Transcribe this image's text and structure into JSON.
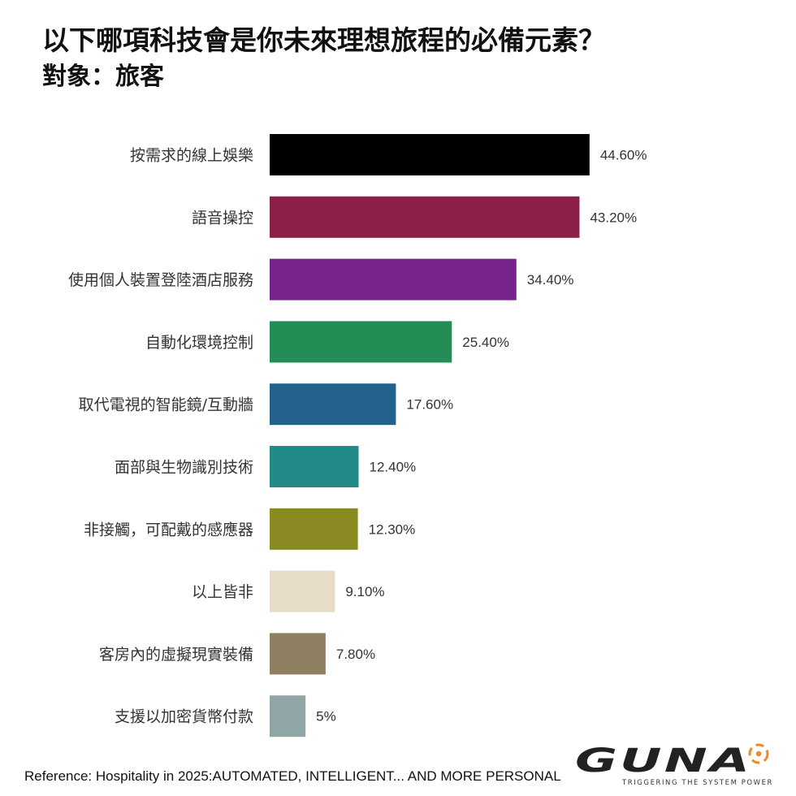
{
  "header": {
    "title": "以下哪項科技會是你未來理想旅程的必備元素？",
    "subtitle": "對象：旅客"
  },
  "chart_data": {
    "type": "bar",
    "orientation": "horizontal",
    "categories": [
      "按需求的線上娛樂",
      "語音操控",
      "使用個人裝置登陸酒店服務",
      "自動化環境控制",
      "取代電視的智能鏡/互動牆",
      "面部與生物識別技術",
      "非接觸，可配戴的感應器",
      "以上皆非",
      "客房內的虛擬現實裝備",
      "支援以加密貨幣付款"
    ],
    "values": [
      44.6,
      43.2,
      34.4,
      25.4,
      17.6,
      12.4,
      12.3,
      9.1,
      7.8,
      5
    ],
    "value_labels": [
      "44.60%",
      "43.20%",
      "34.40%",
      "25.40%",
      "17.60%",
      "12.40%",
      "12.30%",
      "9.10%",
      "7.80%",
      "5%"
    ],
    "colors": [
      "#000000",
      "#8b2049",
      "#76238d",
      "#238d55",
      "#23628c",
      "#228a87",
      "#898b22",
      "#e6dcc8",
      "#8e7f61",
      "#8fa5a6"
    ],
    "xlim": [
      0,
      50
    ],
    "grid": false,
    "legend": "none"
  },
  "footer": {
    "reference": "Reference: Hospitality in 2025:AUTOMATED, INTELLIGENT... AND MORE PERSONAL"
  },
  "logo": {
    "brand_text": "GUNA",
    "tagline": "TRIGGERING THE SYSTEM POWER",
    "accent_color": "#f0882a",
    "text_color": "#222222"
  }
}
